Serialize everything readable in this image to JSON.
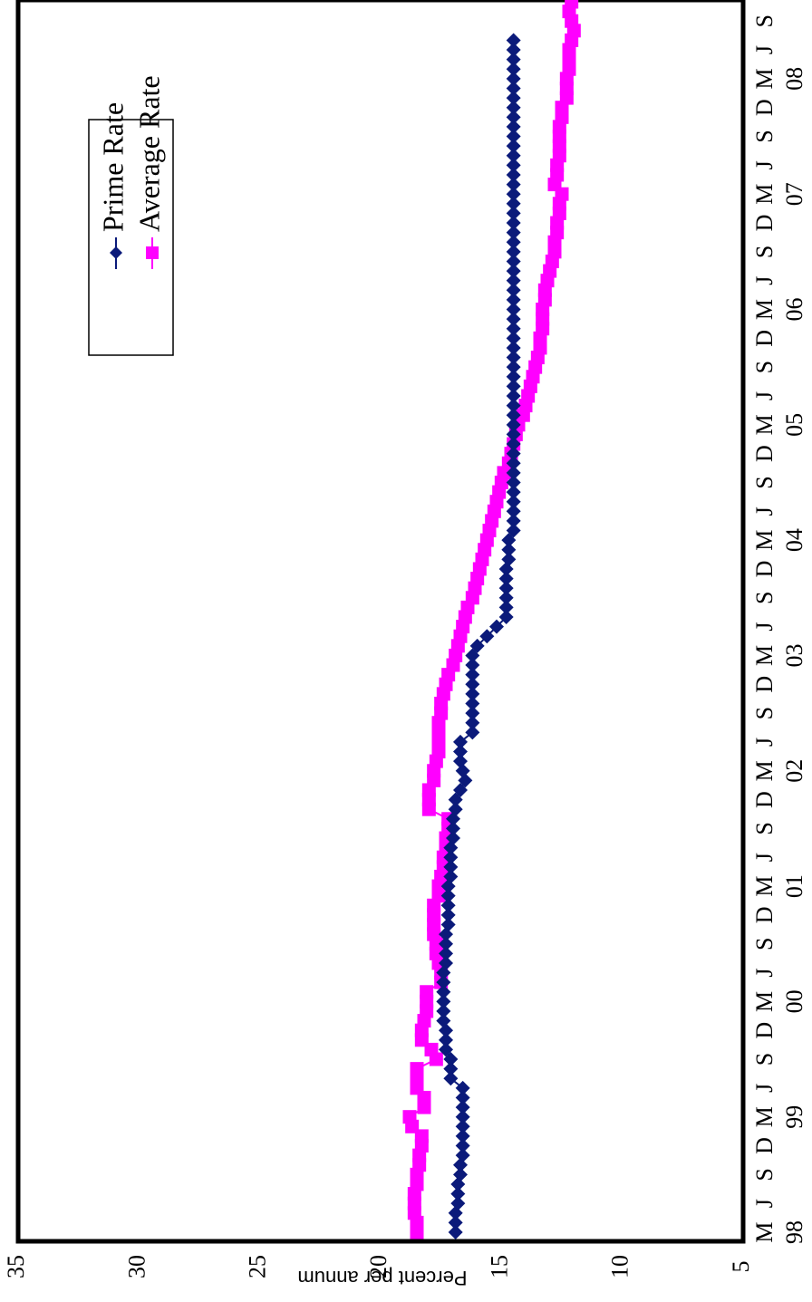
{
  "chart_data": {
    "type": "line",
    "orientation": "rotated-90-clockwise",
    "ylabel": "Percent per annum",
    "ylim": [
      5,
      35
    ],
    "yticks": [
      5,
      10,
      15,
      20,
      25,
      30,
      35
    ],
    "month_labels": [
      "M",
      "J",
      "S",
      "D",
      "M",
      "J",
      "S",
      "D",
      "M",
      "J",
      "S",
      "D",
      "M",
      "J",
      "S",
      "D",
      "M",
      "J",
      "S",
      "D",
      "M",
      "J",
      "S",
      "D",
      "M",
      "J",
      "S",
      "D",
      "M",
      "J",
      "S",
      "D",
      "M",
      "J",
      "S",
      "D",
      "M",
      "J",
      "S",
      "D",
      "M",
      "J",
      "S"
    ],
    "year_labels": [
      "98",
      "99",
      "00",
      "01",
      "02",
      "03",
      "04",
      "05",
      "06",
      "07",
      "08"
    ],
    "legend_position": "top-left",
    "series": [
      {
        "name": "Prime Rate",
        "color": "#0b1a7a",
        "marker": "diamond",
        "x_start": "1998-03",
        "values": [
          16.9,
          16.9,
          16.9,
          16.8,
          16.8,
          16.8,
          16.7,
          16.7,
          16.6,
          16.6,
          16.6,
          16.6,
          16.6,
          16.6,
          16.6,
          16.6,
          17.1,
          17.1,
          17.1,
          17.3,
          17.3,
          17.3,
          17.4,
          17.4,
          17.4,
          17.4,
          17.4,
          17.4,
          17.3,
          17.3,
          17.3,
          17.3,
          17.2,
          17.2,
          17.2,
          17.2,
          17.2,
          17.1,
          17.1,
          17.1,
          17.1,
          17.0,
          17.0,
          17.0,
          16.9,
          16.9,
          16.7,
          16.5,
          16.6,
          16.7,
          16.7,
          16.7,
          16.2,
          16.2,
          16.2,
          16.2,
          16.2,
          16.2,
          16.2,
          16.2,
          16.2,
          16.0,
          15.6,
          15.2,
          14.8,
          14.8,
          14.8,
          14.8,
          14.8,
          14.8,
          14.7,
          14.7,
          14.7,
          14.5,
          14.5,
          14.5,
          14.5,
          14.5,
          14.5,
          14.5,
          14.5,
          14.5,
          14.5,
          14.5,
          14.5,
          14.5,
          14.5,
          14.5,
          14.5,
          14.5,
          14.5,
          14.5,
          14.5,
          14.5,
          14.5,
          14.5,
          14.5,
          14.5,
          14.5,
          14.5,
          14.5,
          14.5,
          14.5,
          14.5,
          14.5,
          14.5,
          14.5,
          14.5,
          14.5,
          14.5,
          14.5,
          14.5,
          14.5,
          14.5,
          14.5,
          14.5,
          14.5,
          14.5,
          14.5,
          14.5,
          14.5,
          14.5,
          14.5,
          14.5,
          14.5
        ]
      },
      {
        "name": "Average Rate",
        "color": "#ff00ff",
        "marker": "square",
        "x_start": "1998-03",
        "values": [
          18.5,
          18.5,
          18.6,
          18.6,
          18.6,
          18.5,
          18.5,
          18.4,
          18.4,
          18.3,
          18.3,
          18.7,
          18.8,
          18.2,
          18.2,
          18.5,
          18.5,
          18.5,
          17.7,
          17.9,
          18.3,
          18.3,
          18.2,
          18.1,
          18.1,
          18.1,
          17.5,
          17.5,
          17.6,
          17.7,
          17.7,
          17.8,
          17.8,
          17.8,
          17.8,
          17.6,
          17.6,
          17.5,
          17.4,
          17.4,
          17.3,
          17.3,
          17.2,
          17.2,
          18.0,
          18.0,
          18.0,
          17.8,
          17.8,
          17.7,
          17.6,
          17.6,
          17.6,
          17.6,
          17.5,
          17.5,
          17.4,
          17.3,
          17.2,
          17.0,
          16.9,
          16.8,
          16.7,
          16.6,
          16.5,
          16.4,
          16.2,
          16.1,
          16.0,
          15.9,
          15.8,
          15.7,
          15.6,
          15.5,
          15.4,
          15.3,
          15.2,
          15.1,
          15.0,
          14.9,
          14.7,
          14.6,
          14.5,
          14.4,
          14.3,
          14.1,
          14.0,
          13.9,
          13.8,
          13.7,
          13.6,
          13.5,
          13.4,
          13.4,
          13.3,
          13.3,
          13.3,
          13.2,
          13.2,
          13.1,
          13.0,
          12.9,
          12.8,
          12.8,
          12.7,
          12.7,
          12.6,
          12.6,
          12.5,
          12.8,
          12.7,
          12.7,
          12.6,
          12.6,
          12.6,
          12.6,
          12.5,
          12.5,
          12.3,
          12.3,
          12.3,
          12.2,
          12.2,
          12.2,
          12.1,
          12.0,
          12.1,
          12.2,
          12.1,
          12.0,
          12.1,
          12.1
        ]
      }
    ]
  }
}
